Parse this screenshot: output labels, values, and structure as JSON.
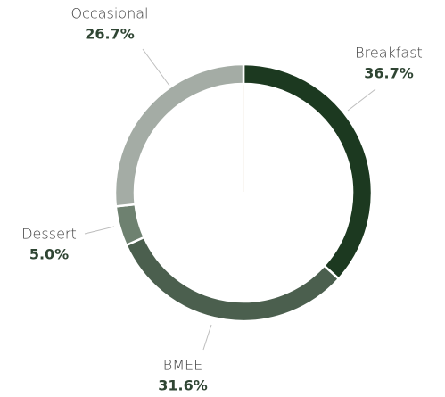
{
  "chart_data": {
    "type": "donut",
    "categories": [
      "Breakfast",
      "BMEE",
      "Dessert",
      "Occasional"
    ],
    "values": [
      36.7,
      31.6,
      5.0,
      26.7
    ],
    "value_labels": [
      "36.7%",
      "31.6%",
      "5.0%",
      "26.7%"
    ],
    "colors": [
      "#1c3920",
      "#4b5f4e",
      "#6e8170",
      "#a4aca5"
    ]
  }
}
